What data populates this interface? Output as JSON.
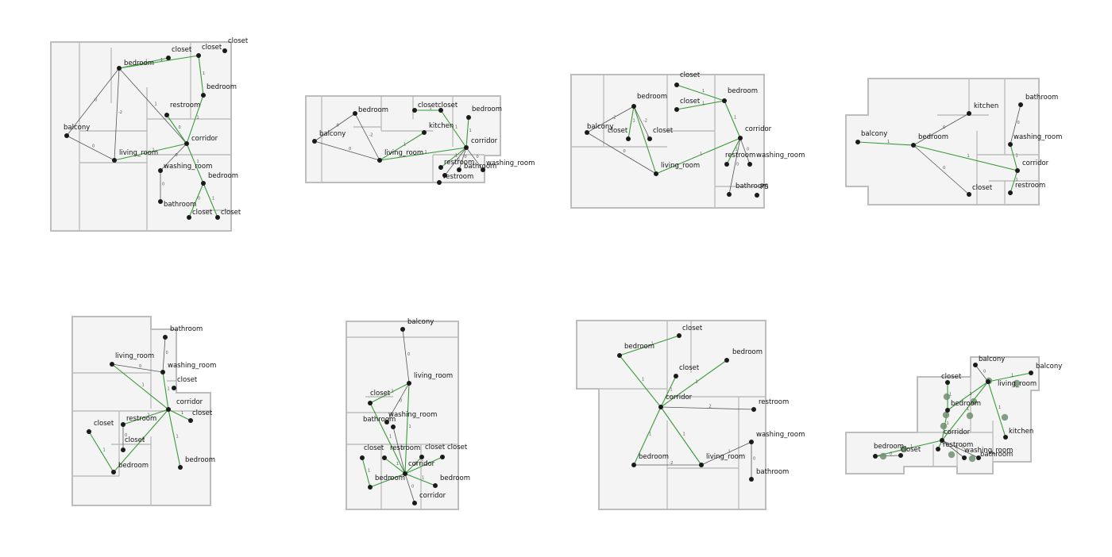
{
  "palette": {
    "background": "#ffffff",
    "floor": "#f4f4f4",
    "wall": "#bdbdbd",
    "edge_green": "#3a9a3a",
    "edge_dark": "#555555",
    "node": "#1a1a1a",
    "node_highlight": "#6f8f6f"
  },
  "floorplans": [
    {
      "id": "plan-1",
      "nodes": [
        {
          "label": "closet"
        },
        {
          "label": "closet"
        },
        {
          "label": "bedroom"
        },
        {
          "label": "closet"
        },
        {
          "label": "bedroom"
        },
        {
          "label": "restroom"
        },
        {
          "label": "balcony"
        },
        {
          "label": "corridor"
        },
        {
          "label": "living_room"
        },
        {
          "label": "washing_room"
        },
        {
          "label": "bedroom"
        },
        {
          "label": "bathroom"
        },
        {
          "label": "closet"
        },
        {
          "label": "closet"
        }
      ],
      "edges": [
        {
          "label": "1"
        },
        {
          "label": "1"
        },
        {
          "label": "0"
        },
        {
          "label": "-2"
        },
        {
          "label": "1"
        },
        {
          "label": "1"
        },
        {
          "label": "1"
        },
        {
          "label": "0"
        },
        {
          "label": "1"
        },
        {
          "label": "0"
        },
        {
          "label": "1"
        },
        {
          "label": "0"
        },
        {
          "label": "0"
        },
        {
          "label": "1"
        },
        {
          "label": "0"
        }
      ]
    },
    {
      "id": "plan-2",
      "nodes": [
        {
          "label": "bedroom"
        },
        {
          "label": "closet"
        },
        {
          "label": "closet"
        },
        {
          "label": "bedroom"
        },
        {
          "label": "kitchen"
        },
        {
          "label": "balcony"
        },
        {
          "label": "corridor"
        },
        {
          "label": "living_room"
        },
        {
          "label": "restroom"
        },
        {
          "label": "bathroom"
        },
        {
          "label": "washing_room"
        },
        {
          "label": "restroom"
        },
        {
          "label": ""
        }
      ],
      "edges": [
        {
          "label": "0"
        },
        {
          "label": "-2"
        },
        {
          "label": "0"
        },
        {
          "label": "1"
        },
        {
          "label": "1"
        },
        {
          "label": "1"
        },
        {
          "label": "1"
        },
        {
          "label": "1"
        },
        {
          "label": "1"
        },
        {
          "label": "0"
        },
        {
          "label": "0"
        },
        {
          "label": "0"
        }
      ]
    },
    {
      "id": "plan-3",
      "nodes": [
        {
          "label": "closet"
        },
        {
          "label": "closet"
        },
        {
          "label": "bedroom"
        },
        {
          "label": "bedroom"
        },
        {
          "label": "balcony"
        },
        {
          "label": "closet"
        },
        {
          "label": "closet"
        },
        {
          "label": "corridor"
        },
        {
          "label": "living_room"
        },
        {
          "label": "restroom"
        },
        {
          "label": "washing_room"
        },
        {
          "label": "bathroom"
        },
        {
          "label": "PS"
        }
      ],
      "edges": [
        {
          "label": "1"
        },
        {
          "label": "1"
        },
        {
          "label": "-2"
        },
        {
          "label": "1"
        },
        {
          "label": "-2"
        },
        {
          "label": "1"
        },
        {
          "label": "0"
        },
        {
          "label": "1"
        },
        {
          "label": "1"
        },
        {
          "label": "1"
        },
        {
          "label": "0"
        },
        {
          "label": "0"
        }
      ]
    },
    {
      "id": "plan-4",
      "nodes": [
        {
          "label": "kitchen"
        },
        {
          "label": "bathroom"
        },
        {
          "label": "balcony"
        },
        {
          "label": "bedroom"
        },
        {
          "label": "washing_room"
        },
        {
          "label": "corridor"
        },
        {
          "label": "closet"
        },
        {
          "label": "restroom"
        }
      ],
      "edges": [
        {
          "label": "0"
        },
        {
          "label": "1"
        },
        {
          "label": "1"
        },
        {
          "label": "0"
        },
        {
          "label": "1"
        },
        {
          "label": "0"
        },
        {
          "label": "1"
        }
      ]
    },
    {
      "id": "plan-5",
      "nodes": [
        {
          "label": "bathroom"
        },
        {
          "label": "living_room"
        },
        {
          "label": "washing_room"
        },
        {
          "label": "closet"
        },
        {
          "label": "corridor"
        },
        {
          "label": "closet"
        },
        {
          "label": "restroom"
        },
        {
          "label": "closet"
        },
        {
          "label": "closet"
        },
        {
          "label": "bedroom"
        },
        {
          "label": "bedroom"
        }
      ],
      "edges": [
        {
          "label": "0"
        },
        {
          "label": "0"
        },
        {
          "label": "1"
        },
        {
          "label": "1"
        },
        {
          "label": "1"
        },
        {
          "label": "1"
        },
        {
          "label": "1"
        },
        {
          "label": "1"
        },
        {
          "label": "1"
        },
        {
          "label": "0"
        }
      ]
    },
    {
      "id": "plan-6",
      "nodes": [
        {
          "label": "balcony"
        },
        {
          "label": "living_room"
        },
        {
          "label": "closet"
        },
        {
          "label": "washing_room"
        },
        {
          "label": "bathroom"
        },
        {
          "label": "closet"
        },
        {
          "label": "restroom"
        },
        {
          "label": "closet"
        },
        {
          "label": "closet"
        },
        {
          "label": "corridor"
        },
        {
          "label": "bedroom"
        },
        {
          "label": "bedroom"
        },
        {
          "label": "corridor"
        }
      ],
      "edges": [
        {
          "label": "0"
        },
        {
          "label": "1"
        },
        {
          "label": "0"
        },
        {
          "label": "1"
        },
        {
          "label": "1"
        },
        {
          "label": "1"
        },
        {
          "label": "1"
        },
        {
          "label": "1"
        },
        {
          "label": "1"
        },
        {
          "label": "1"
        },
        {
          "label": "1"
        },
        {
          "label": "0"
        },
        {
          "label": "0"
        }
      ]
    },
    {
      "id": "plan-7",
      "nodes": [
        {
          "label": "closet"
        },
        {
          "label": "bedroom"
        },
        {
          "label": "bedroom"
        },
        {
          "label": "closet"
        },
        {
          "label": "corridor"
        },
        {
          "label": "restroom"
        },
        {
          "label": "washing_room"
        },
        {
          "label": "bedroom"
        },
        {
          "label": "living_room"
        },
        {
          "label": "bathroom"
        }
      ],
      "edges": [
        {
          "label": "1"
        },
        {
          "label": "1"
        },
        {
          "label": "1"
        },
        {
          "label": "1"
        },
        {
          "label": "2"
        },
        {
          "label": "1"
        },
        {
          "label": "1"
        },
        {
          "label": "1"
        },
        {
          "label": "-2"
        },
        {
          "label": "0"
        },
        {
          "label": "0"
        }
      ]
    },
    {
      "id": "plan-8",
      "nodes": [
        {
          "label": "balcony"
        },
        {
          "label": "balcony"
        },
        {
          "label": "living_room"
        },
        {
          "label": "closet"
        },
        {
          "label": "bedroom"
        },
        {
          "label": "corridor"
        },
        {
          "label": "kitchen"
        },
        {
          "label": "bedroom"
        },
        {
          "label": "closet"
        },
        {
          "label": "restroom"
        },
        {
          "label": "washing_room"
        },
        {
          "label": "bathroom"
        }
      ],
      "edges": [
        {
          "label": "0"
        },
        {
          "label": "1"
        },
        {
          "label": "1"
        },
        {
          "label": "1"
        },
        {
          "label": "1"
        },
        {
          "label": "1"
        },
        {
          "label": "1"
        },
        {
          "label": "1"
        },
        {
          "label": "1"
        },
        {
          "label": "0"
        },
        {
          "label": "0"
        },
        {
          "label": "0"
        }
      ]
    }
  ]
}
